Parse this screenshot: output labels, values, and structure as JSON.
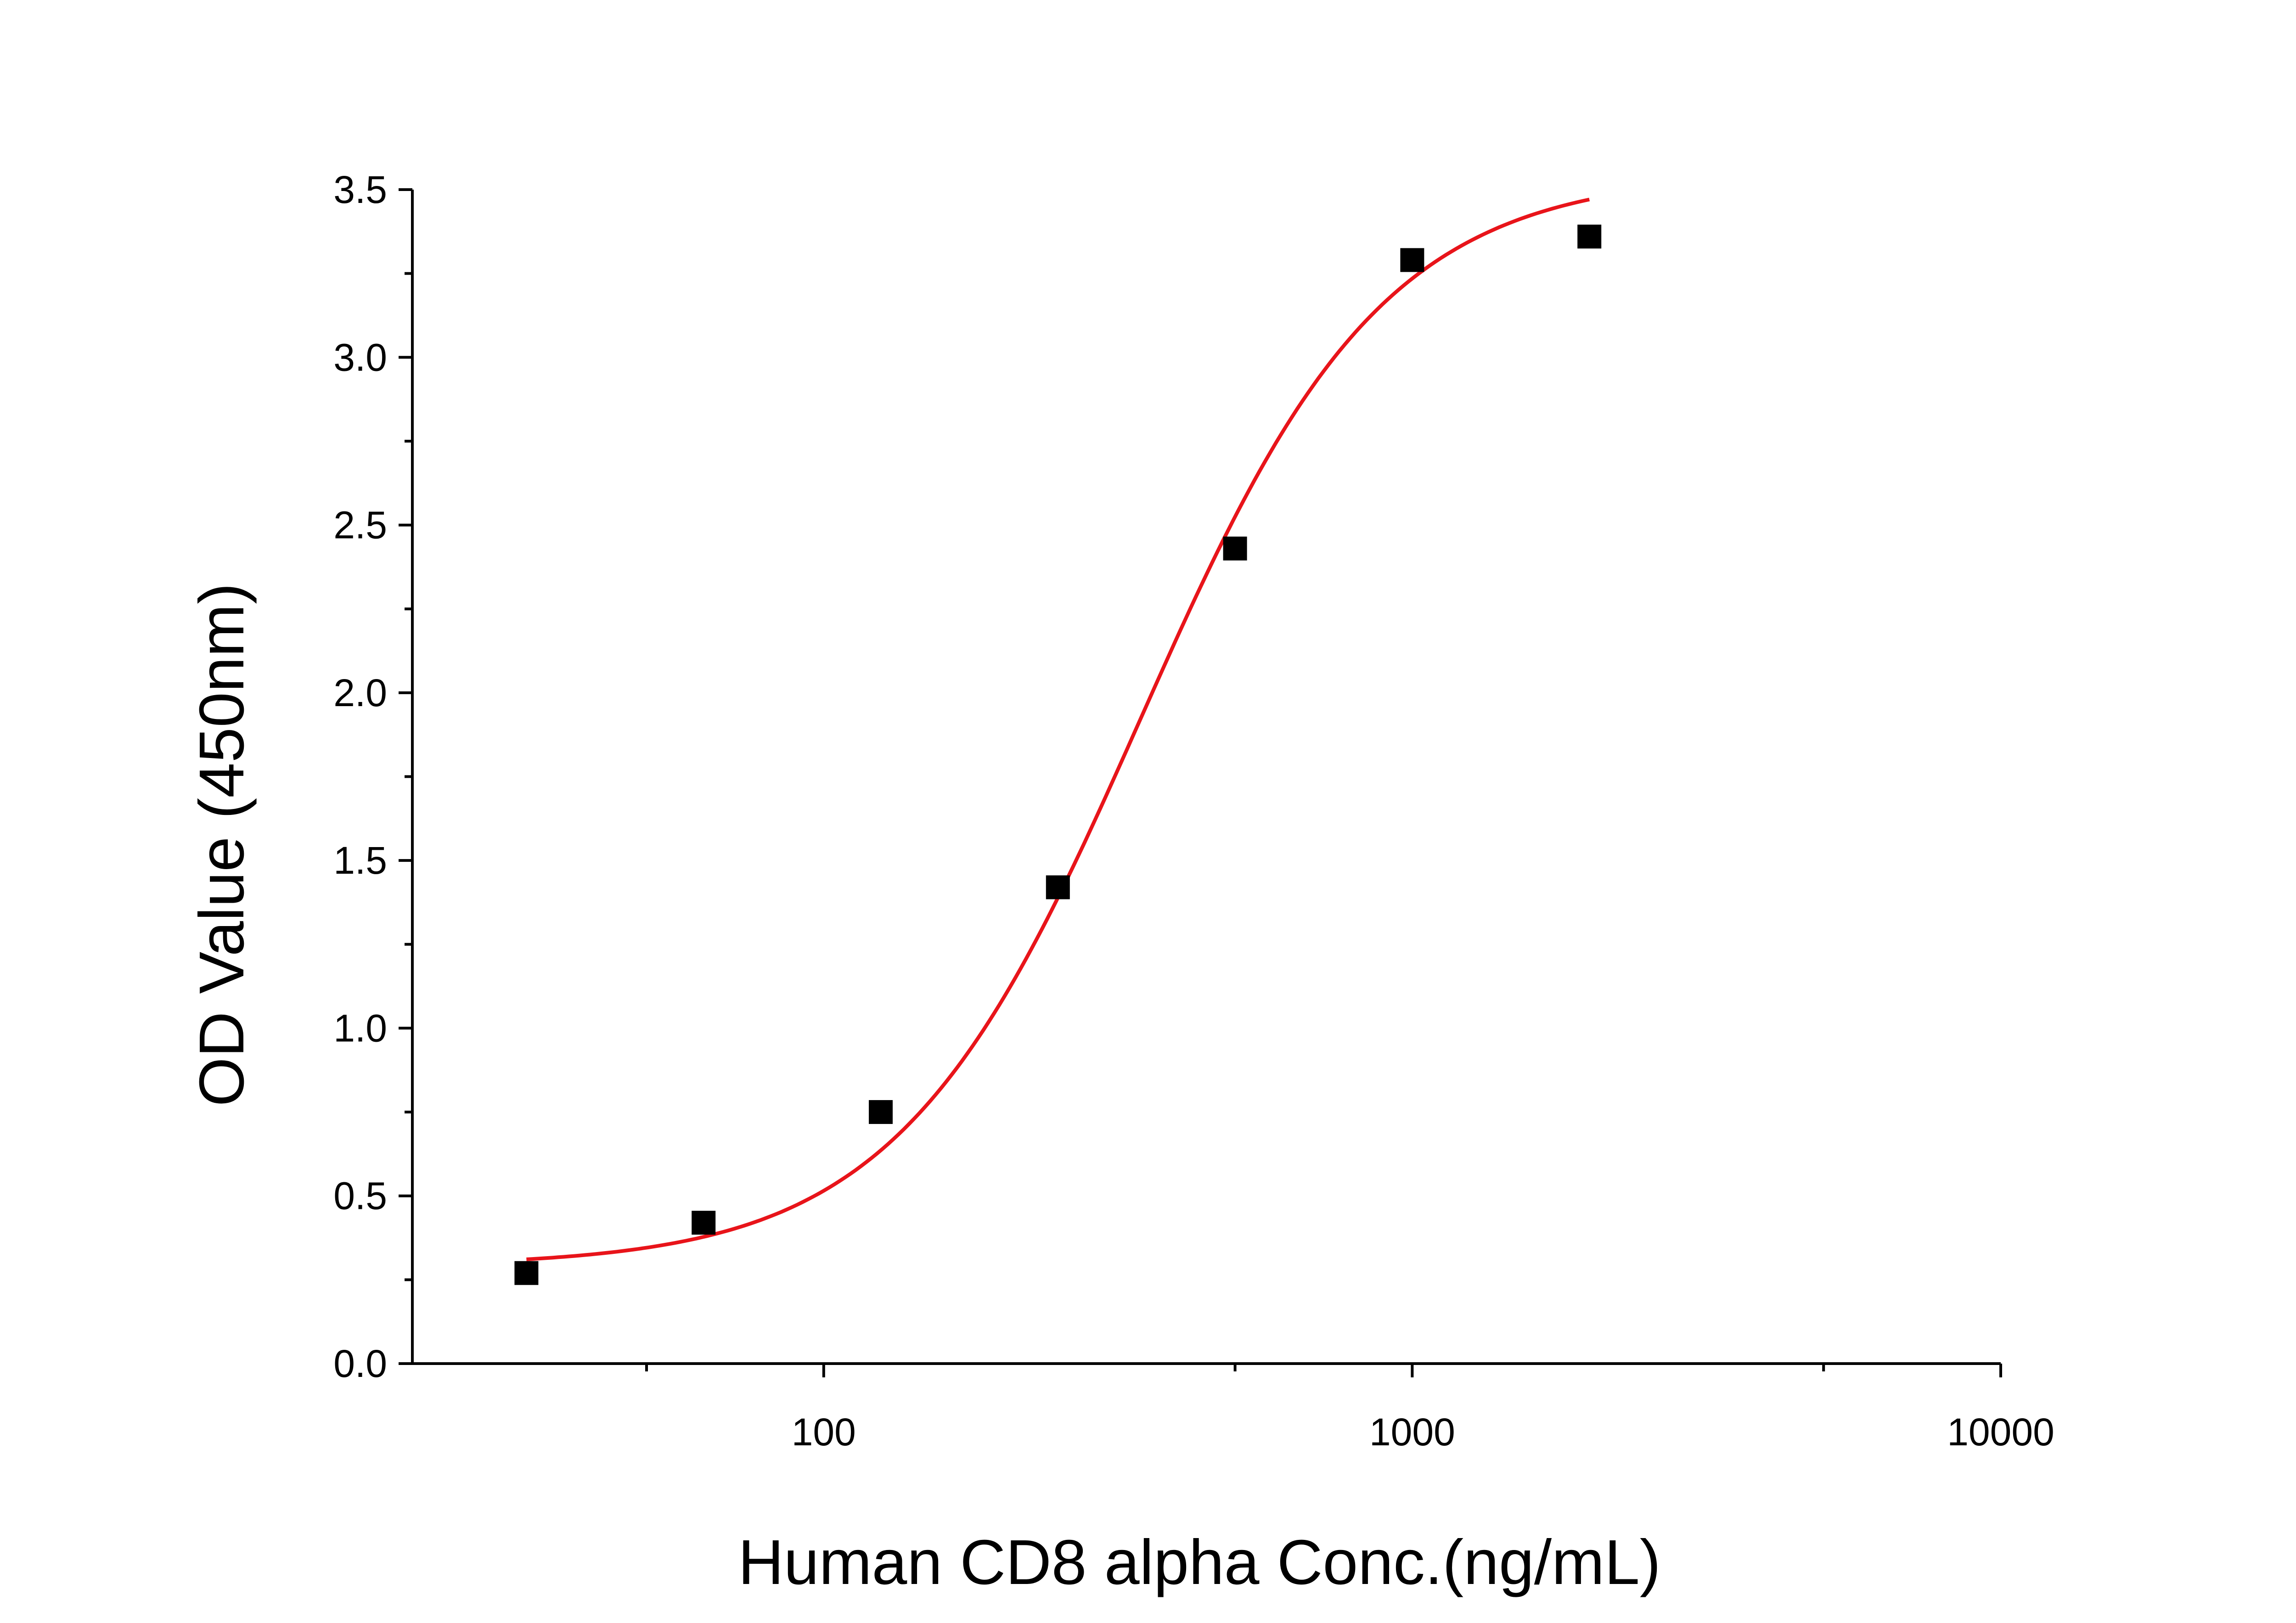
{
  "chart_data": {
    "type": "scatter",
    "title": "",
    "xlabel": "Human CD8 alpha Conc.(ng/mL)",
    "ylabel": "OD Value (450nm)",
    "x_scale": "log",
    "xlim": [
      20,
      10000
    ],
    "ylim": [
      0,
      3.5
    ],
    "x_ticks": [
      100,
      1000,
      10000
    ],
    "x_tick_labels": [
      "100",
      "1000",
      "10000"
    ],
    "y_ticks": [
      0,
      0.5,
      1.0,
      1.5,
      2.0,
      2.5,
      3.0,
      3.5
    ],
    "y_tick_labels": [
      "0.0",
      "0.5",
      "1.0",
      "1.5",
      "2.0",
      "2.5",
      "3.0",
      "3.5"
    ],
    "grid": false,
    "legend": "none",
    "series": [
      {
        "x": [
          31.25,
          62.5,
          125,
          250,
          500,
          1000,
          2000
        ],
        "y": [
          0.27,
          0.42,
          0.75,
          1.42,
          2.43,
          3.29,
          3.36
        ],
        "marker": "square",
        "color": "#000000"
      }
    ],
    "fit": {
      "model": "4PL",
      "bottom": 0.29,
      "top": 3.55,
      "ec50": 345,
      "hill": 2.1,
      "x_range": [
        31.25,
        2000
      ],
      "color": "#e8141a"
    }
  }
}
